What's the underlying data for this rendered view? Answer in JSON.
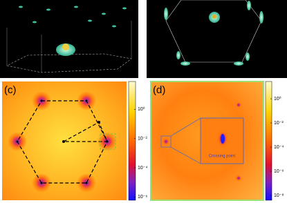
{
  "panels": [
    {
      "label": null
    },
    {
      "label": null
    },
    {
      "label": "(c)",
      "colorbar": {
        "log": true,
        "range": [
          80,
          6e-07
        ],
        "ticks": [
          {
            "value": 1,
            "label": "10⁰"
          },
          {
            "value": 0.01,
            "label": "10⁻²"
          },
          {
            "value": 0.0001,
            "label": "10⁻⁴"
          },
          {
            "value": 1e-06,
            "label": "10⁻⁶"
          }
        ]
      }
    },
    {
      "label": "(d)",
      "annotation": "Crossing point",
      "colorbar": {
        "log": true,
        "range": [
          27,
          4e-09
        ],
        "ticks": [
          {
            "value": 1,
            "label": "10⁰"
          },
          {
            "value": 0.01,
            "label": "10⁻²"
          },
          {
            "value": 0.0001,
            "label": "10⁻⁴"
          },
          {
            "value": 1e-06,
            "label": "10⁻⁶"
          },
          {
            "value": 1e-08,
            "label": "10⁻⁸"
          }
        ]
      }
    }
  ]
}
